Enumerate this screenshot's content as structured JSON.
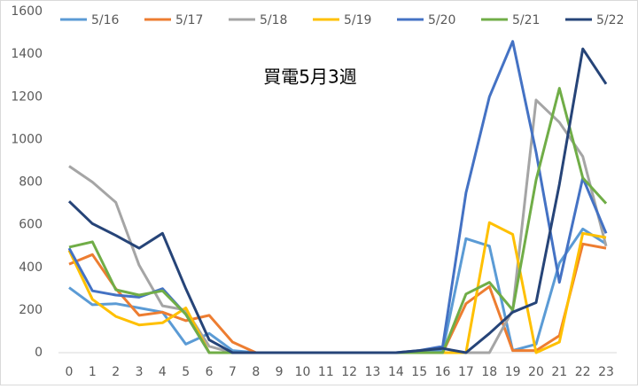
{
  "chart_data": {
    "type": "line",
    "title": "買電5月3週",
    "categories": [
      "0",
      "1",
      "2",
      "3",
      "4",
      "5",
      "6",
      "7",
      "8",
      "9",
      "10",
      "11",
      "12",
      "13",
      "14",
      "15",
      "16",
      "17",
      "18",
      "19",
      "20",
      "21",
      "22",
      "23"
    ],
    "series": [
      {
        "name": "5/16",
        "color": "#5b9bd5",
        "values": [
          305,
          225,
          230,
          210,
          190,
          40,
          90,
          10,
          0,
          0,
          0,
          0,
          0,
          0,
          0,
          0,
          10,
          535,
          500,
          10,
          40,
          420,
          580,
          510
        ]
      },
      {
        "name": "5/17",
        "color": "#ed7d31",
        "values": [
          415,
          460,
          300,
          175,
          190,
          150,
          175,
          50,
          0,
          0,
          0,
          0,
          0,
          0,
          0,
          0,
          0,
          230,
          310,
          10,
          10,
          80,
          510,
          490
        ]
      },
      {
        "name": "5/18",
        "color": "#a5a5a5",
        "values": [
          875,
          800,
          705,
          410,
          220,
          200,
          30,
          0,
          0,
          0,
          0,
          0,
          0,
          0,
          0,
          0,
          0,
          0,
          0,
          200,
          1185,
          1080,
          920,
          500
        ]
      },
      {
        "name": "5/19",
        "color": "#ffc000",
        "values": [
          480,
          250,
          170,
          130,
          140,
          210,
          0,
          0,
          0,
          0,
          0,
          0,
          0,
          0,
          0,
          0,
          0,
          0,
          610,
          555,
          0,
          50,
          560,
          540
        ]
      },
      {
        "name": "5/20",
        "color": "#4472c4",
        "values": [
          490,
          290,
          270,
          260,
          300,
          180,
          0,
          0,
          0,
          0,
          0,
          0,
          0,
          0,
          0,
          10,
          30,
          750,
          1200,
          1460,
          940,
          330,
          820,
          560
        ]
      },
      {
        "name": "5/21",
        "color": "#70ad47",
        "values": [
          495,
          520,
          295,
          270,
          290,
          180,
          0,
          0,
          0,
          0,
          0,
          0,
          0,
          0,
          0,
          0,
          0,
          275,
          330,
          200,
          810,
          1240,
          820,
          700
        ]
      },
      {
        "name": "5/22",
        "color": "#264478",
        "values": [
          710,
          605,
          550,
          490,
          560,
          300,
          60,
          0,
          0,
          0,
          0,
          0,
          0,
          0,
          0,
          10,
          20,
          0,
          90,
          190,
          235,
          790,
          1425,
          1260
        ]
      }
    ],
    "ylim": [
      0,
      1600
    ],
    "yticks": [
      0,
      200,
      400,
      600,
      800,
      1000,
      1200,
      1400,
      1600
    ],
    "grid": false,
    "legend": "top"
  }
}
